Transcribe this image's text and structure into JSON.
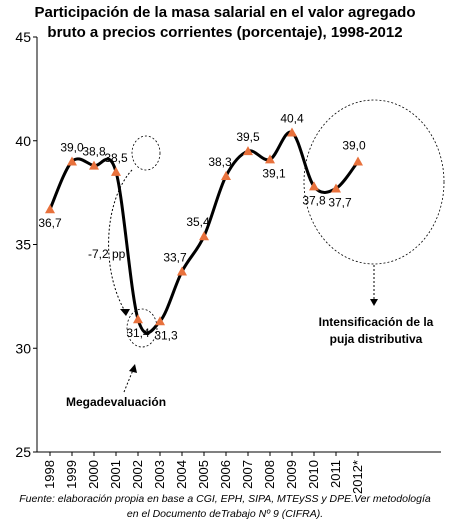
{
  "chart_data": {
    "type": "line",
    "title_lines": [
      "Participación de la masa salarial en el valor agregado",
      "bruto a precios corrientes (porcentaje), 1998-2012"
    ],
    "categories": [
      "1998",
      "1999",
      "2000",
      "2001",
      "2002",
      "2003",
      "2004",
      "2005",
      "2006",
      "2007",
      "2008",
      "2009",
      "2010",
      "2011",
      "2012*"
    ],
    "values": [
      36.7,
      39.0,
      38.8,
      38.5,
      31.4,
      31.3,
      33.7,
      35.4,
      38.3,
      39.5,
      39.1,
      40.4,
      37.8,
      37.7,
      39.0
    ],
    "value_labels": [
      "36,7",
      "39,0",
      "38,8",
      "38,5",
      "31,4",
      "31,3",
      "33,7",
      "35,4",
      "38,3",
      "39,5",
      "39,1",
      "40,4",
      "37,8",
      "37,7",
      "39,0"
    ],
    "ylim": [
      25,
      45
    ],
    "yticks": [
      "25",
      "30",
      "35",
      "40",
      "45"
    ],
    "line_color": "#000000",
    "marker_color": "#e8713c",
    "grid": false,
    "annotations": {
      "drop_label": "-7,2 pp",
      "devaluation_label": "Megadevaluación",
      "dispute_label_lines": [
        "Intensificación de la",
        "puja distributiva"
      ]
    },
    "source_lines": [
      "Fuente: elaboración propia en base a CGI, EPH, SIPA, MTEySS y DPE.Ver metodología",
      "en el Documento deTrabajo Nº 9 (CIFRA)."
    ]
  }
}
